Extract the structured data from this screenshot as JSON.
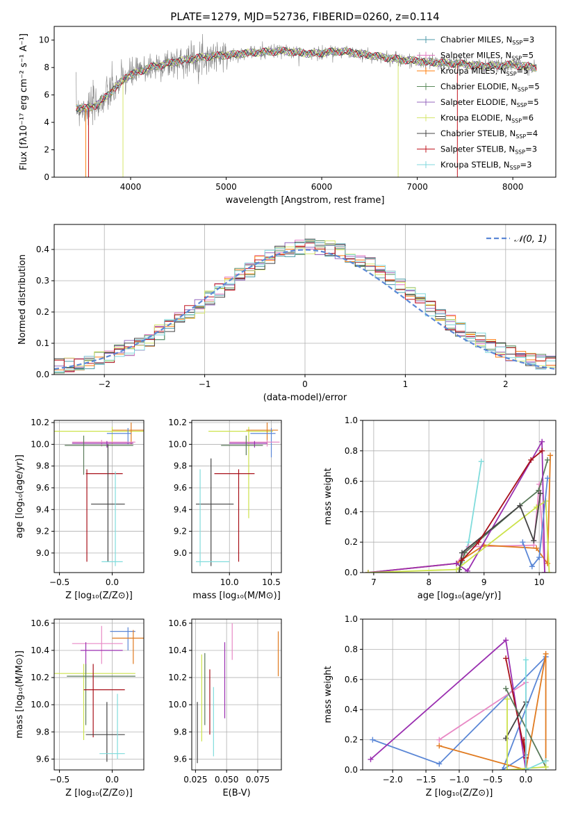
{
  "figure_title": "PLATE=1279, MJD=52736, FIBERID=0260, z=0.114",
  "colors": {
    "Chabrier MILES": "#4c9aa8",
    "Salpeter MILES": "#e377c2",
    "Kroupa MILES": "#ff7f0e",
    "Chabrier ELODIE": "#5a8a5a",
    "Salpeter ELODIE": "#9467bd",
    "Kroupa ELODIE": "#d4e66a",
    "Chabrier STELIB": "#444444",
    "Salpeter STELIB": "#c0141e",
    "Kroupa STELIB": "#7fd7dc",
    "data": "#808080",
    "gaussian": "#5b87d6",
    "z_blue": "#5b87d6",
    "z_orange": "#e07a1f",
    "z_purple": "#9a2fb0",
    "z_red": "#a8101a",
    "z_green": "#5a7a5a",
    "z_dark": "#444444",
    "z_lime": "#cce24a",
    "z_cyan": "#80dcdc",
    "z_pink": "#e889c5"
  },
  "chart_data": [
    {
      "type": "line",
      "id": "spectrum",
      "title": "PLATE=1279, MJD=52736, FIBERID=0260, z=0.114",
      "xlabel": "wavelength [Angstrom, rest frame]",
      "ylabel": "Flux [fλ10⁻¹⁷ erg cm⁻² s⁻¹ A⁻¹]",
      "xlim": [
        3200,
        8450
      ],
      "ylim": [
        0,
        11
      ],
      "xticks": [
        "4000",
        "5000",
        "6000",
        "7000",
        "8000"
      ],
      "yticks": [
        "0",
        "2",
        "4",
        "6",
        "8",
        "10"
      ],
      "legend_position": "right",
      "legend": [
        {
          "name": "Chabrier MILES, N",
          "sub": "SSP",
          "n": "=3"
        },
        {
          "name": "Salpeter MILES, N",
          "sub": "SSP",
          "n": "=5"
        },
        {
          "name": "Kroupa MILES, N",
          "sub": "SSP",
          "n": "=5"
        },
        {
          "name": "Chabrier ELODIE, N",
          "sub": "SSP",
          "n": "=5"
        },
        {
          "name": "Salpeter ELODIE, N",
          "sub": "SSP",
          "n": "=5"
        },
        {
          "name": "Kroupa ELODIE, N",
          "sub": "SSP",
          "n": "=6"
        },
        {
          "name": "Chabrier STELIB, N",
          "sub": "SSP",
          "n": "=4"
        },
        {
          "name": "Salpeter STELIB, N",
          "sub": "SSP",
          "n": "=3"
        },
        {
          "name": "Kroupa STELIB, N",
          "sub": "SSP",
          "n": "=3"
        }
      ],
      "continuum": {
        "x": [
          3430,
          3550,
          3650,
          3750,
          3850,
          3950,
          4050,
          4200,
          4400,
          4600,
          4800,
          5000,
          5300,
          5600,
          5900,
          6200,
          6500,
          6800,
          7100,
          7400,
          7700,
          8000,
          8250
        ],
        "y": [
          5.1,
          5.0,
          5.3,
          5.9,
          6.6,
          7.3,
          7.6,
          8.0,
          8.3,
          8.6,
          8.8,
          8.9,
          9.1,
          9.2,
          9.0,
          9.2,
          8.9,
          8.6,
          8.4,
          8.3,
          8.1,
          8.2,
          8.0
        ]
      }
    },
    {
      "type": "line",
      "id": "residuals",
      "xlabel": "(data-model)/error",
      "ylabel": "Normed distribution",
      "xlim": [
        -2.5,
        2.5
      ],
      "ylim": [
        0,
        0.48
      ],
      "xticks": [
        "−2",
        "−1",
        "0",
        "1",
        "2"
      ],
      "yticks": [
        "0.0",
        "0.1",
        "0.2",
        "0.3",
        "0.4"
      ],
      "legend": "𝒩(0, 1)",
      "gaussian": {
        "mean": 0,
        "sigma": 1
      }
    },
    {
      "type": "scatter",
      "id": "age_vs_z",
      "xlabel": "Z [log₁₀(Z/Z⊙)]",
      "ylabel": "age  [log₁₀(age/yr)]",
      "xlim": [
        -0.55,
        0.3
      ],
      "ylim": [
        8.82,
        10.22
      ],
      "xticks": [
        "−0.5",
        "0.0"
      ],
      "yticks": [
        "9.0",
        "9.2",
        "9.4",
        "9.6",
        "9.8",
        "10.0",
        "10.2"
      ],
      "points": [
        {
          "c": "z_lime",
          "x": 0.0,
          "xe": [
            -0.55,
            0.3
          ],
          "y": 10.12,
          "ye": [
            10.0,
            10.16
          ]
        },
        {
          "c": "z_orange",
          "x": 0.18,
          "xe": [
            0.0,
            0.3
          ],
          "y": 10.13,
          "ye": [
            10.0,
            10.2
          ]
        },
        {
          "c": "z_blue",
          "x": 0.15,
          "xe": [
            -0.05,
            0.18
          ],
          "y": 10.1,
          "ye": [
            10.0,
            10.15
          ]
        },
        {
          "c": "z_pink",
          "x": -0.1,
          "xe": [
            -0.38,
            0.22
          ],
          "y": 10.02,
          "ye": [
            9.98,
            10.04
          ]
        },
        {
          "c": "z_purple",
          "x": -0.05,
          "xe": [
            -0.38,
            0.2
          ],
          "y": 10.01,
          "ye": [
            9.97,
            10.03
          ]
        },
        {
          "c": "z_green",
          "x": -0.27,
          "xe": [
            -0.45,
            0.2
          ],
          "y": 9.99,
          "ye": [
            9.72,
            10.08
          ]
        },
        {
          "c": "z_red",
          "x": -0.24,
          "xe": [
            -0.25,
            0.1
          ],
          "y": 9.73,
          "ye": [
            8.92,
            9.77
          ]
        },
        {
          "c": "z_dark",
          "x": -0.04,
          "xe": [
            -0.2,
            0.12
          ],
          "y": 9.45,
          "ye": [
            8.92,
            10.0
          ]
        },
        {
          "c": "z_cyan",
          "x": 0.03,
          "xe": [
            -0.1,
            0.1
          ],
          "y": 8.92,
          "ye": [
            8.88,
            9.75
          ]
        }
      ]
    },
    {
      "type": "scatter",
      "id": "age_vs_mass",
      "xlabel": "mass [log₁₀(M/M⊙)]",
      "ylabel": "",
      "xlim": [
        9.55,
        10.62
      ],
      "ylim": [
        8.82,
        10.22
      ],
      "xticks": [
        "10.0",
        "10.5"
      ],
      "yticks": [
        "9.0",
        "9.2",
        "9.4",
        "9.6",
        "9.8",
        "10.0",
        "10.2"
      ],
      "points": [
        {
          "c": "z_lime",
          "x": 10.23,
          "xe": [
            9.75,
            10.52
          ],
          "y": 10.12,
          "ye": [
            9.32,
            10.16
          ]
        },
        {
          "c": "z_orange",
          "x": 10.45,
          "xe": [
            10.2,
            10.58
          ],
          "y": 10.13,
          "ye": [
            10.0,
            10.2
          ]
        },
        {
          "c": "z_blue",
          "x": 10.5,
          "xe": [
            10.25,
            10.55
          ],
          "y": 10.1,
          "ye": [
            9.88,
            10.15
          ]
        },
        {
          "c": "z_pink",
          "x": 10.45,
          "xe": [
            10.0,
            10.6
          ],
          "y": 10.02,
          "ye": [
            9.98,
            10.04
          ]
        },
        {
          "c": "z_purple",
          "x": 10.3,
          "xe": [
            10.0,
            10.45
          ],
          "y": 10.01,
          "ye": [
            9.97,
            10.03
          ]
        },
        {
          "c": "z_green",
          "x": 10.2,
          "xe": [
            9.9,
            10.4
          ],
          "y": 9.99,
          "ye": [
            9.9,
            10.08
          ]
        },
        {
          "c": "z_red",
          "x": 10.11,
          "xe": [
            9.82,
            10.3
          ],
          "y": 9.73,
          "ye": [
            8.92,
            9.77
          ]
        },
        {
          "c": "z_dark",
          "x": 9.78,
          "xe": [
            9.6,
            10.05
          ],
          "y": 9.45,
          "ye": [
            8.88,
            9.87
          ]
        },
        {
          "c": "z_cyan",
          "x": 9.65,
          "xe": [
            9.6,
            10.0
          ],
          "y": 8.92,
          "ye": [
            8.88,
            9.77
          ]
        }
      ]
    },
    {
      "type": "line",
      "id": "massweight_vs_age",
      "xlabel": "age  [log₁₀(age/yr)]",
      "ylabel": "mass weight",
      "xlim": [
        6.8,
        10.3
      ],
      "ylim": [
        0,
        1
      ],
      "xticks": [
        "7",
        "8",
        "9",
        "10"
      ],
      "yticks": [
        "0.0",
        "0.2",
        "0.4",
        "0.6",
        "0.8",
        "1.0"
      ],
      "series": [
        {
          "c": "z_cyan",
          "x": [
            8.6,
            8.72,
            8.95
          ],
          "y": [
            0.07,
            0.2,
            0.73
          ]
        },
        {
          "c": "z_pink",
          "x": [
            6.9,
            8.5,
            8.72,
            9.9,
            10.0,
            10.1
          ],
          "y": [
            0.0,
            0.06,
            0.17,
            0.18,
            0.58,
            0.0
          ]
        },
        {
          "c": "z_orange",
          "x": [
            6.9,
            8.5,
            9.0,
            9.95,
            10.15,
            10.2
          ],
          "y": [
            0.0,
            0.06,
            0.18,
            0.16,
            0.06,
            0.77
          ]
        },
        {
          "c": "z_green",
          "x": [
            8.55,
            8.65,
            9.65,
            9.99,
            10.15
          ],
          "y": [
            0.02,
            0.13,
            0.44,
            0.54,
            0.74
          ]
        },
        {
          "c": "z_purple",
          "x": [
            6.9,
            8.5,
            8.7,
            10.05,
            10.1
          ],
          "y": [
            0.0,
            0.06,
            0.01,
            0.86,
            0.0
          ]
        },
        {
          "c": "z_lime",
          "x": [
            6.9,
            8.5,
            9.95,
            10.12,
            10.18
          ],
          "y": [
            0.0,
            0.02,
            0.43,
            0.47,
            0.0
          ]
        },
        {
          "c": "z_dark",
          "x": [
            8.55,
            8.6,
            9.65,
            9.9,
            10.02
          ],
          "y": [
            0.0,
            0.13,
            0.44,
            0.21,
            0.52
          ]
        },
        {
          "c": "z_red",
          "x": [
            8.6,
            8.9,
            9.85,
            10.05
          ],
          "y": [
            0.08,
            0.2,
            0.74,
            0.8
          ]
        },
        {
          "c": "z_blue",
          "x": [
            9.7,
            9.87,
            10.0,
            10.15
          ],
          "y": [
            0.2,
            0.04,
            0.1,
            0.62
          ]
        }
      ]
    },
    {
      "type": "scatter",
      "id": "mass_vs_z",
      "xlabel": "Z [log₁₀(Z/Z⊙)]",
      "ylabel": "mass [log₁₀(M/M⊙)]",
      "xlim": [
        -0.55,
        0.3
      ],
      "ylim": [
        9.52,
        10.63
      ],
      "xticks": [
        "−0.5",
        "0.0"
      ],
      "yticks": [
        "9.6",
        "9.8",
        "10.0",
        "10.2",
        "10.4",
        "10.6"
      ],
      "points": [
        {
          "c": "z_blue",
          "x": 0.15,
          "xe": [
            -0.02,
            0.22
          ],
          "y": 10.54,
          "ye": [
            10.4,
            10.57
          ]
        },
        {
          "c": "z_orange",
          "x": 0.2,
          "xe": [
            0.0,
            0.3
          ],
          "y": 10.49,
          "ye": [
            10.3,
            10.55
          ]
        },
        {
          "c": "z_pink",
          "x": -0.1,
          "xe": [
            -0.38,
            0.1
          ],
          "y": 10.45,
          "ye": [
            10.3,
            10.58
          ]
        },
        {
          "c": "z_purple",
          "x": -0.25,
          "xe": [
            -0.3,
            0.1
          ],
          "y": 10.4,
          "ye": [
            10.23,
            10.46
          ]
        },
        {
          "c": "z_lime",
          "x": -0.27,
          "xe": [
            -0.55,
            0.22
          ],
          "y": 10.23,
          "ye": [
            9.74,
            10.3
          ]
        },
        {
          "c": "z_green",
          "x": -0.25,
          "xe": [
            -0.43,
            0.22
          ],
          "y": 10.21,
          "ye": [
            9.85,
            10.3
          ]
        },
        {
          "c": "z_red",
          "x": -0.18,
          "xe": [
            -0.27,
            0.12
          ],
          "y": 10.11,
          "ye": [
            9.76,
            10.3
          ]
        },
        {
          "c": "z_dark",
          "x": -0.05,
          "xe": [
            -0.25,
            0.12
          ],
          "y": 9.78,
          "ye": [
            9.58,
            10.02
          ]
        },
        {
          "c": "z_cyan",
          "x": 0.05,
          "xe": [
            -0.12,
            0.12
          ],
          "y": 9.64,
          "ye": [
            9.6,
            10.08
          ]
        }
      ]
    },
    {
      "type": "scatter",
      "id": "mass_vs_ebv",
      "xlabel": "E(B-V)",
      "ylabel": "",
      "xlim": [
        0.022,
        0.094
      ],
      "ylim": [
        9.52,
        10.63
      ],
      "xticks": [
        "0.025",
        "0.050",
        "0.075"
      ],
      "yticks": [
        "9.6",
        "9.8",
        "10.0",
        "10.2",
        "10.4",
        "10.6"
      ],
      "segments": [
        {
          "c": "z_dark",
          "x": 0.0265,
          "y": [
            9.57,
            10.02
          ]
        },
        {
          "c": "z_lime",
          "x": 0.03,
          "y": [
            9.73,
            10.37
          ]
        },
        {
          "c": "z_green",
          "x": 0.0325,
          "y": [
            9.85,
            10.38
          ]
        },
        {
          "c": "z_red",
          "x": 0.0365,
          "y": [
            9.78,
            10.26
          ]
        },
        {
          "c": "z_cyan",
          "x": 0.0395,
          "y": [
            9.62,
            10.13
          ]
        },
        {
          "c": "z_purple",
          "x": 0.0485,
          "y": [
            9.9,
            10.46
          ]
        },
        {
          "c": "z_pink",
          "x": 0.0545,
          "y": [
            10.33,
            10.6
          ]
        },
        {
          "c": "z_orange",
          "x": 0.0915,
          "y": [
            10.21,
            10.54
          ]
        }
      ]
    },
    {
      "type": "line",
      "id": "massweight_vs_z",
      "xlabel": "Z [log₁₀(Z/Z⊙)]",
      "ylabel": "mass weight",
      "xlim": [
        -2.45,
        0.45
      ],
      "ylim": [
        0,
        1
      ],
      "xticks": [
        "−2.0",
        "−1.5",
        "−1.0",
        "−0.5",
        "0.0"
      ],
      "yticks": [
        "0.0",
        "0.2",
        "0.4",
        "0.6",
        "0.8",
        "1.0"
      ],
      "series": [
        {
          "c": "z_blue",
          "x": [
            -2.3,
            -1.3,
            0.3,
            -0.35,
            0.0
          ],
          "y": [
            0.2,
            0.04,
            0.75,
            0.0,
            0.1
          ]
        },
        {
          "c": "z_purple",
          "x": [
            -2.33,
            -0.3,
            0.0
          ],
          "y": [
            0.07,
            0.86,
            0.0
          ]
        },
        {
          "c": "z_orange",
          "x": [
            -1.3,
            0.0,
            0.3,
            0.3
          ],
          "y": [
            0.16,
            0.0,
            0.77,
            0.06
          ]
        },
        {
          "c": "z_pink",
          "x": [
            -1.3,
            0.0,
            0.0
          ],
          "y": [
            0.2,
            0.58,
            0.0
          ]
        },
        {
          "c": "z_red",
          "x": [
            -0.3,
            0.0,
            -0.03
          ],
          "y": [
            0.74,
            0.08,
            0.2
          ]
        },
        {
          "c": "z_green",
          "x": [
            -0.3,
            0.3
          ],
          "y": [
            0.54,
            0.02
          ]
        },
        {
          "c": "z_dark",
          "x": [
            -0.3,
            0.0,
            0.0
          ],
          "y": [
            0.21,
            0.45,
            0.0
          ]
        },
        {
          "c": "z_lime",
          "x": [
            -0.28,
            -0.28,
            0.3
          ],
          "y": [
            0.47,
            0.0,
            0.02
          ]
        },
        {
          "c": "z_cyan",
          "x": [
            0.0,
            0.0,
            0.3
          ],
          "y": [
            0.73,
            0.0,
            0.06
          ]
        }
      ]
    }
  ]
}
